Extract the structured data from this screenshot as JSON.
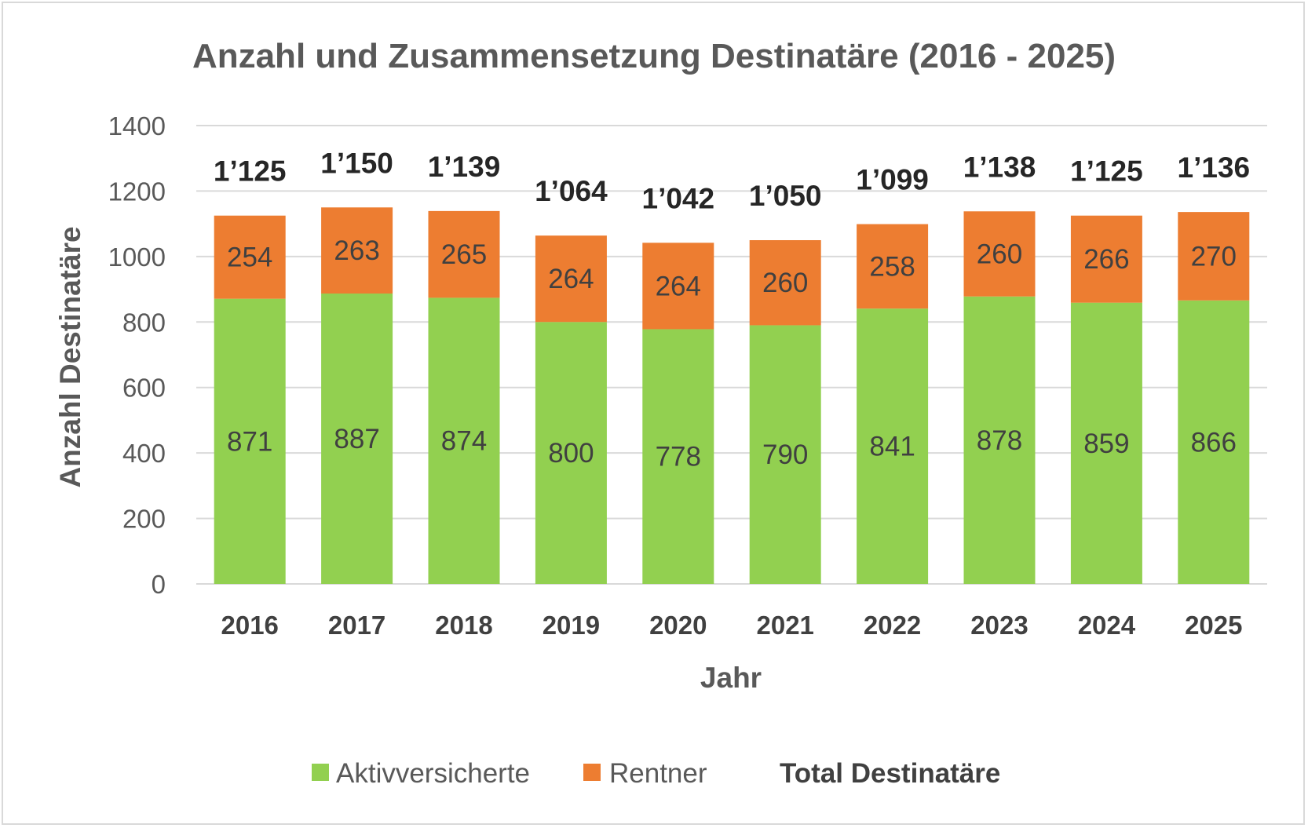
{
  "chart_data": {
    "type": "bar",
    "stacked": true,
    "title": "Anzahl und Zusammensetzung Destinatäre (2016 - 2025)",
    "xlabel": "Jahr",
    "ylabel": "Anzahl Destinatäre",
    "ylim": [
      0,
      1400
    ],
    "yticks": [
      "0",
      "200",
      "400",
      "600",
      "800",
      "1000",
      "1200",
      "1400"
    ],
    "grid": true,
    "legend_position": "bottom",
    "categories": [
      "2016",
      "2017",
      "2018",
      "2019",
      "2020",
      "2021",
      "2022",
      "2023",
      "2024",
      "2025"
    ],
    "series": [
      {
        "name": "Aktivversicherte",
        "color": "#92d050",
        "values": [
          871,
          887,
          874,
          800,
          778,
          790,
          841,
          878,
          859,
          866
        ]
      },
      {
        "name": "Rentner",
        "color": "#ed7d31",
        "values": [
          254,
          263,
          265,
          264,
          264,
          260,
          258,
          260,
          266,
          270
        ]
      }
    ],
    "totals_name": "Total Destinatäre",
    "totals": [
      "1’125",
      "1’150",
      "1’139",
      "1’064",
      "1’042",
      "1’050",
      "1’099",
      "1’138",
      "1’125",
      "1’136"
    ],
    "totals_values": [
      1125,
      1150,
      1139,
      1064,
      1042,
      1050,
      1099,
      1138,
      1125,
      1136
    ]
  }
}
